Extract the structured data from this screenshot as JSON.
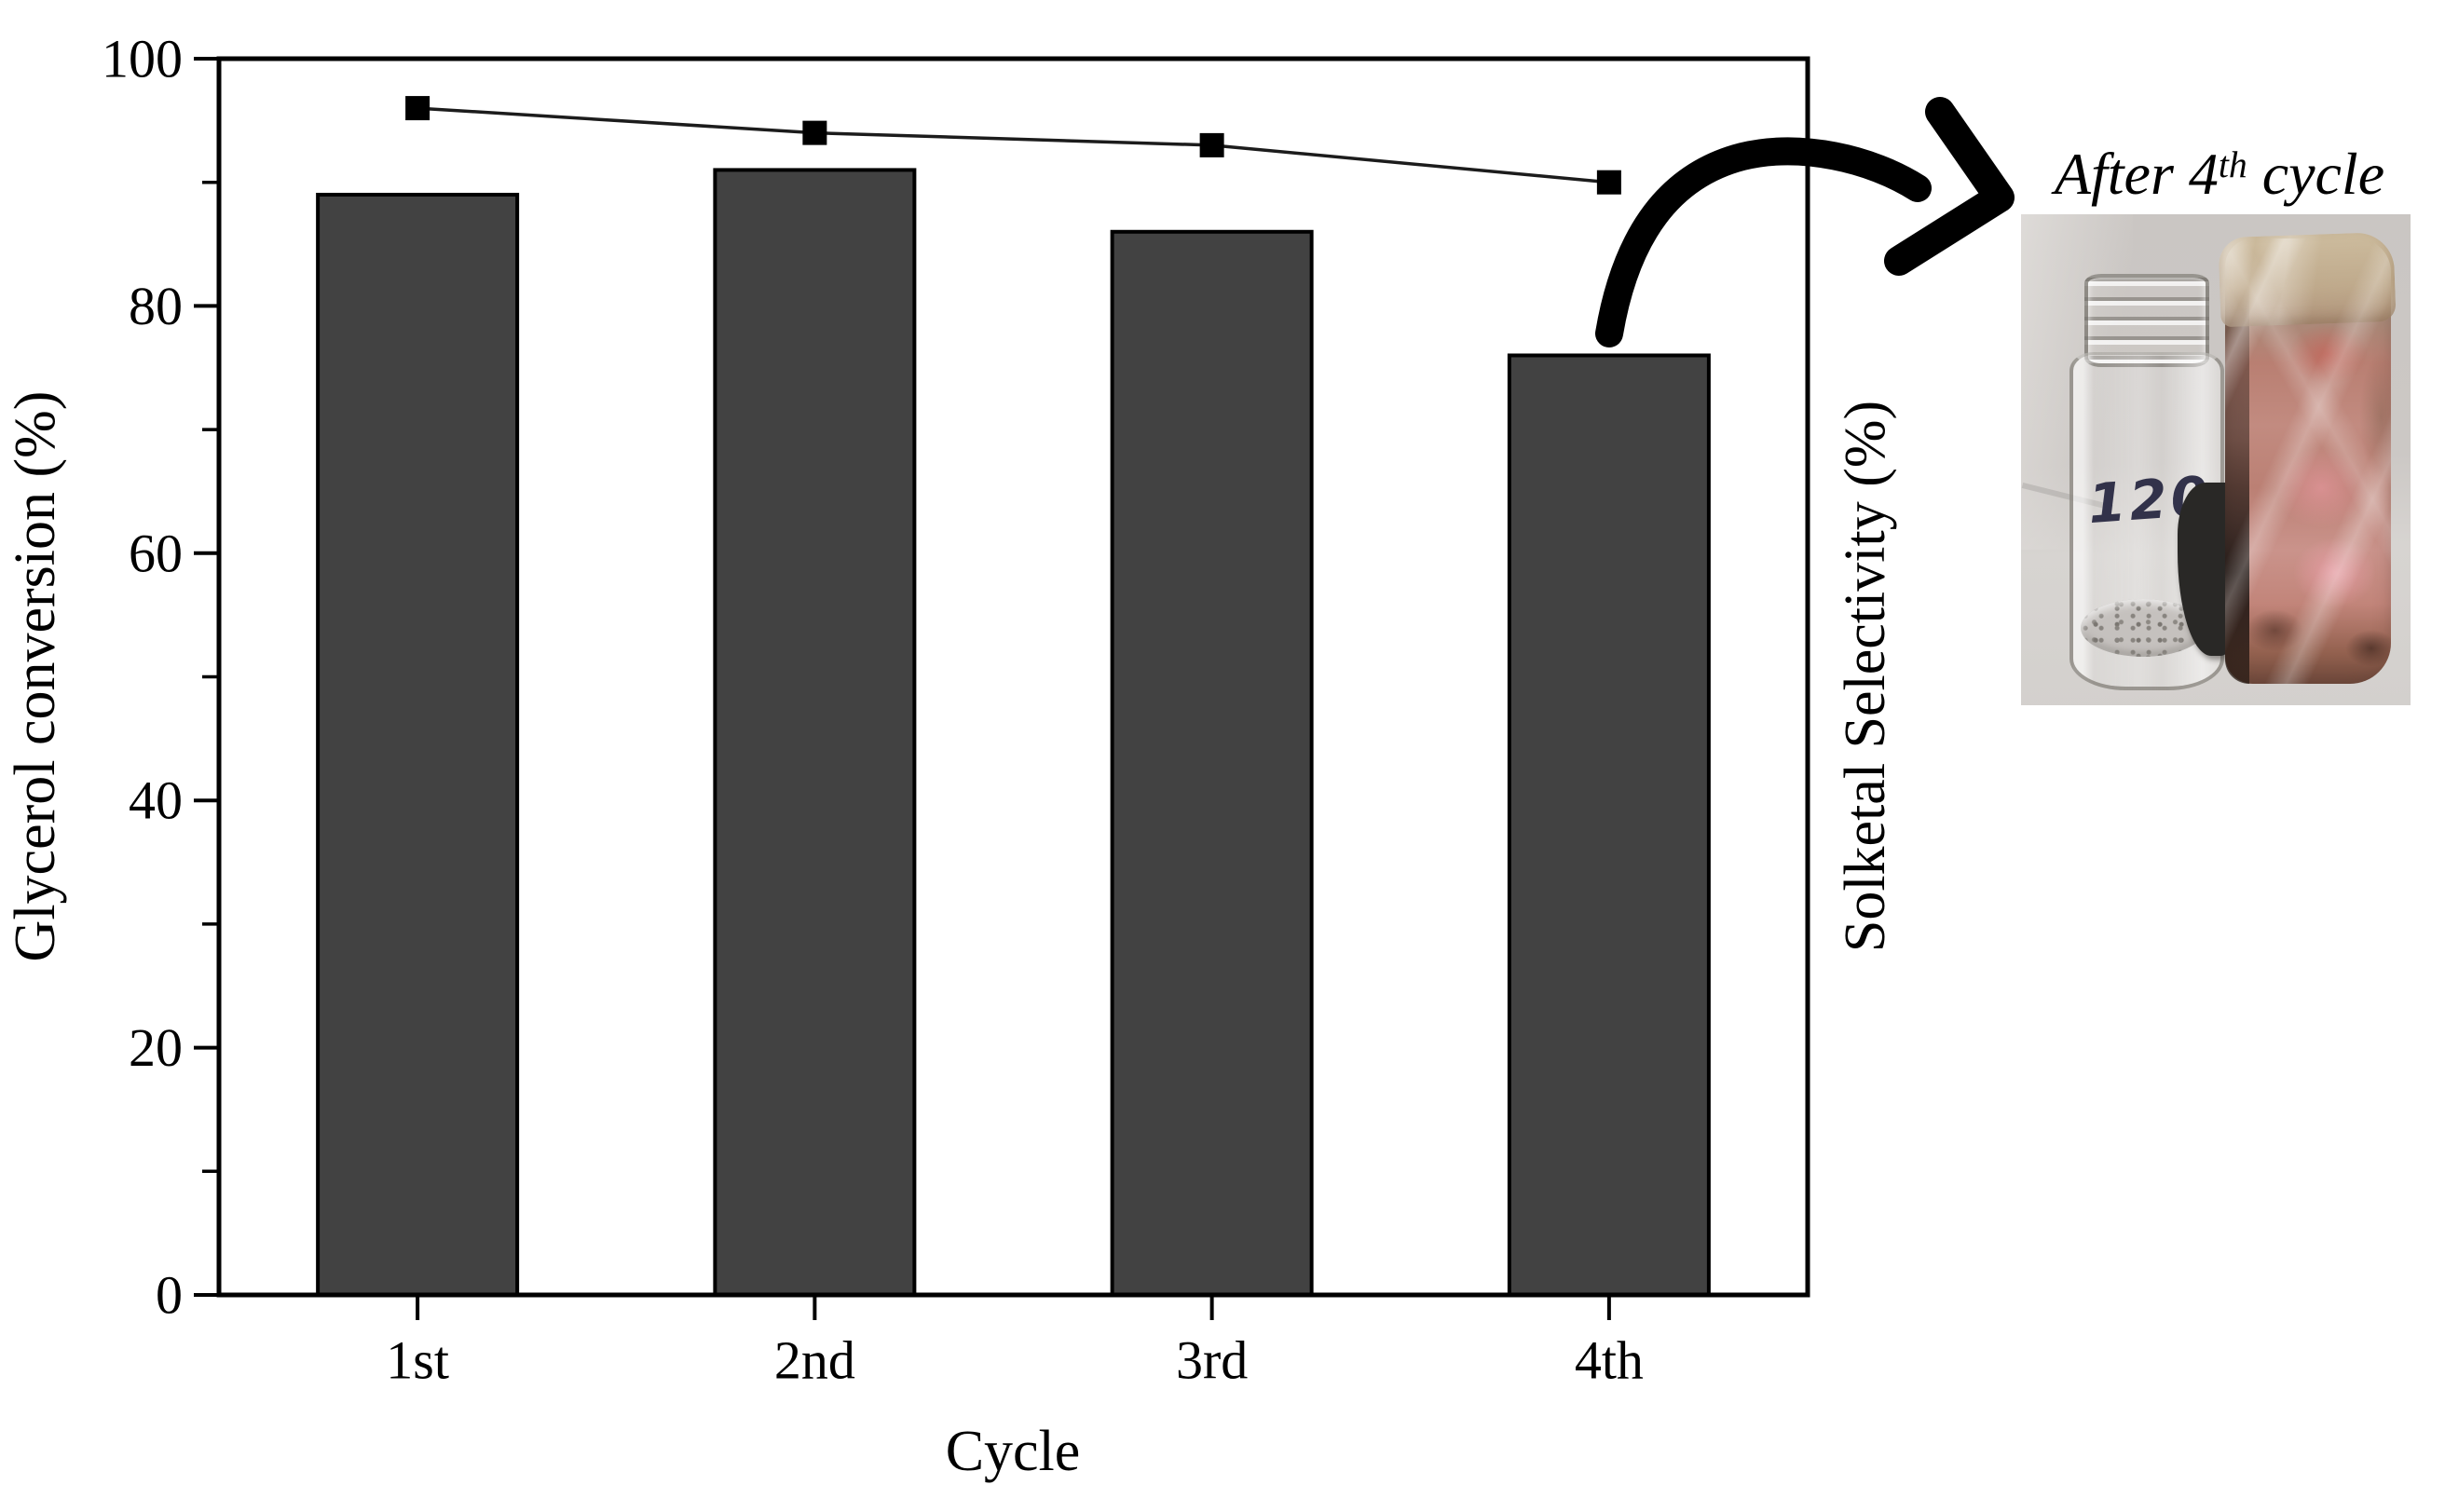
{
  "figure": {
    "caption": {
      "prefix": "After 4",
      "sup": "th",
      "suffix": " cycle"
    },
    "photo": {
      "vial_label": "120",
      "description": "Glass vial labeled 120 with gray powder residue beside a pink tape-wrapped monolith catalyst on a gray background"
    }
  },
  "chart_data": {
    "type": "bar",
    "categories": [
      "1st",
      "2nd",
      "3rd",
      "4th"
    ],
    "series": [
      {
        "name": "Glycerol conversion (%)",
        "type": "bar",
        "axis": "left",
        "values": [
          89,
          91,
          86,
          76
        ]
      },
      {
        "name": "Solketal Selectivity (%)",
        "type": "line",
        "axis": "right",
        "marker": "square",
        "values": [
          96,
          94,
          93,
          90
        ]
      }
    ],
    "xlabel": "Cycle",
    "ylabel_left": "Glycerol conversion (%)",
    "ylabel_right": "Solketal Selectivity (%)",
    "ylim": [
      0,
      100
    ],
    "ytick_major": [
      0,
      20,
      40,
      60,
      80,
      100
    ],
    "ytick_minor": [
      10,
      30,
      50,
      70,
      90
    ],
    "grid": false,
    "legend": false,
    "colors": {
      "bar_fill": "#424242",
      "bar_stroke": "#000000",
      "line": "#1c1c1c",
      "marker": "#000000",
      "frame": "#000000",
      "arrow": "#000000"
    }
  }
}
